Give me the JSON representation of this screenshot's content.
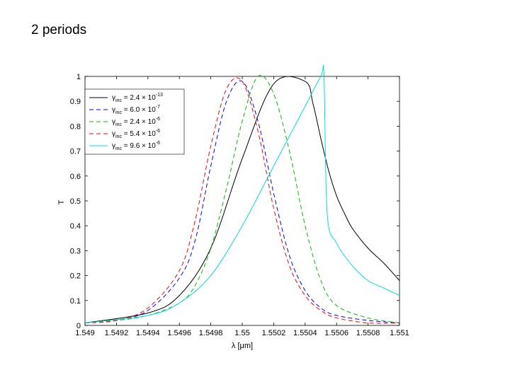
{
  "slide": {
    "title": "2 periods"
  },
  "chart_data": {
    "type": "line",
    "title": "",
    "xlabel": "λ [μm]",
    "ylabel": "T",
    "xlim": [
      1.549,
      1.551
    ],
    "ylim": [
      0,
      1
    ],
    "xticks": [
      1.549,
      1.5492,
      1.5494,
      1.5496,
      1.5498,
      1.55,
      1.5502,
      1.5504,
      1.5506,
      1.5508,
      1.551
    ],
    "xtick_labels": [
      "1.549",
      "1.5492",
      "1.5494",
      "1.5496",
      "1.5498",
      "1.55",
      "1.5502",
      "1.5504",
      "1.5506",
      "1.5508",
      "1.551"
    ],
    "yticks": [
      0,
      0.1,
      0.2,
      0.3,
      0.4,
      0.5,
      0.6,
      0.7,
      0.8,
      0.9,
      1
    ],
    "ytick_labels": [
      "0",
      "0.1",
      "0.2",
      "0.3",
      "0.4",
      "0.5",
      "0.6",
      "0.7",
      "0.8",
      "0.9",
      "1"
    ],
    "grid": false,
    "legend_position": "top-left",
    "series": [
      {
        "name": "γinc = 2.4 × 10^-13",
        "prefix": "inc",
        "value": "= 2.4 × 10",
        "exponent": "-13",
        "color": "#000000",
        "dash": "none",
        "x": [
          1.549,
          1.5494,
          1.5496,
          1.5498,
          1.55,
          1.5502,
          1.5504,
          1.55045,
          1.5505,
          1.55055,
          1.5506,
          1.55065,
          1.5507,
          1.5508,
          1.5509,
          1.551
        ],
        "y": [
          0.01,
          0.05,
          0.12,
          0.31,
          0.67,
          0.97,
          0.98,
          0.89,
          0.75,
          0.62,
          0.52,
          0.45,
          0.39,
          0.31,
          0.25,
          0.18
        ]
      },
      {
        "name": "γinc = 6.0 × 10^-7",
        "prefix": "inc",
        "value": "= 6.0 × 10",
        "exponent": "-7",
        "color": "#0000ff",
        "dash": "6,4",
        "x": [
          1.549,
          1.5492,
          1.5494,
          1.5496,
          1.5497,
          1.5498,
          1.5499,
          1.55,
          1.5501,
          1.5502,
          1.5503,
          1.5504,
          1.5505,
          1.5506,
          1.5508,
          1.551
        ],
        "y": [
          0.01,
          0.02,
          0.06,
          0.19,
          0.34,
          0.64,
          0.9,
          0.98,
          0.82,
          0.53,
          0.28,
          0.14,
          0.07,
          0.04,
          0.02,
          0.01
        ]
      },
      {
        "name": "γinc = 2.4 × 10^-6",
        "prefix": "inc",
        "value": "= 2.4 × 10",
        "exponent": "-6",
        "color": "#00c000",
        "dash": "6,4",
        "x": [
          1.549,
          1.5492,
          1.5494,
          1.5496,
          1.5497,
          1.5498,
          1.5499,
          1.55,
          1.5501,
          1.5502,
          1.5503,
          1.5504,
          1.5505,
          1.5506,
          1.5508,
          1.551
        ],
        "y": [
          0.01,
          0.02,
          0.04,
          0.09,
          0.16,
          0.31,
          0.55,
          0.82,
          1.0,
          0.93,
          0.7,
          0.4,
          0.18,
          0.08,
          0.03,
          0.01
        ]
      },
      {
        "name": "γinc = 5.4 × 10^-6",
        "prefix": "inc",
        "value": "= 5.4 × 10",
        "exponent": "-6",
        "color": "#ff0000",
        "dash": "6,4",
        "x": [
          1.549,
          1.5492,
          1.5494,
          1.5496,
          1.5497,
          1.5498,
          1.5499,
          1.55,
          1.5501,
          1.5502,
          1.5503,
          1.5504,
          1.5505,
          1.5506,
          1.5508,
          1.551
        ],
        "y": [
          0.01,
          0.02,
          0.07,
          0.22,
          0.42,
          0.72,
          0.95,
          0.98,
          0.78,
          0.47,
          0.24,
          0.12,
          0.06,
          0.03,
          0.01,
          0.01
        ]
      },
      {
        "name": "γinc = 9.6 × 10^-6",
        "prefix": "inc",
        "value": "= 9.6 × 10",
        "exponent": "-6",
        "color": "#00e0e0",
        "dash": "none",
        "x": [
          1.549,
          1.5494,
          1.5496,
          1.5498,
          1.55,
          1.5502,
          1.5504,
          1.5505,
          1.55052,
          1.55054,
          1.5506,
          1.5507,
          1.5508,
          1.5509,
          1.551
        ],
        "y": [
          0.01,
          0.04,
          0.09,
          0.2,
          0.4,
          0.64,
          0.88,
          1.0,
          1.0,
          0.45,
          0.33,
          0.24,
          0.18,
          0.15,
          0.12
        ]
      }
    ]
  }
}
